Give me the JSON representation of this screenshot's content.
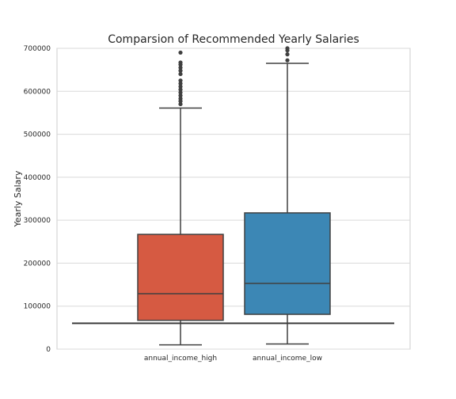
{
  "chart_data": {
    "type": "box",
    "title": "Comparsion of Recommended Yearly Salaries",
    "xlabel": "",
    "ylabel": "Yearly Salary",
    "ylim": [
      0,
      700000
    ],
    "yticks": [
      0,
      100000,
      200000,
      300000,
      400000,
      500000,
      600000,
      700000
    ],
    "yticklabels": [
      "0",
      "100000",
      "200000",
      "300000",
      "400000",
      "500000",
      "600000",
      "700000"
    ],
    "grid": true,
    "categories": [
      "annual_income_high",
      "annual_income_low"
    ],
    "boxes": [
      {
        "category": "annual_income_high",
        "color": "#d65a42",
        "whisker_low": 10000,
        "q1": 67000,
        "median": 129000,
        "q3": 267000,
        "whisker_high": 561000,
        "outliers": [
          570000,
          577000,
          583000,
          590000,
          597000,
          604000,
          611000,
          618000,
          625000,
          640000,
          648000,
          655000,
          662000,
          667000,
          690000
        ]
      },
      {
        "category": "annual_income_low",
        "color": "#3c87b5",
        "whisker_low": 12000,
        "q1": 81000,
        "median": 153000,
        "q3": 317000,
        "whisker_high": 665000,
        "outliers": [
          672000,
          686000,
          695000,
          700000
        ]
      }
    ],
    "reference_line": 60000
  }
}
